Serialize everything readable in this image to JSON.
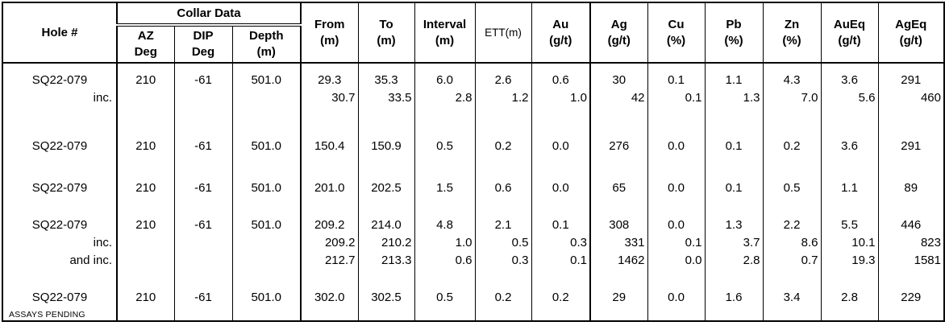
{
  "header": {
    "hole": "Hole #",
    "collar": "Collar Data",
    "az1": "AZ",
    "az2": "Deg",
    "dip1": "DIP",
    "dip2": "Deg",
    "depth1": "Depth",
    "depth2": "(m)",
    "from1": "From",
    "from2": "(m)",
    "to1": "To",
    "to2": "(m)",
    "interval1": "Interval",
    "interval2": "(m)",
    "ett": "ETT(m)",
    "au1": "Au",
    "au2": "(g/t)",
    "ag1": "Ag",
    "ag2": "(g/t)",
    "cu1": "Cu",
    "cu2": "(%)",
    "pb1": "Pb",
    "pb2": "(%)",
    "zn1": "Zn",
    "zn2": "(%)",
    "aueq1": "AuEq",
    "aueq2": "(g/t)",
    "ageq1": "AgEq",
    "ageq2": "(g/t)"
  },
  "columns_order": [
    "AZ Deg",
    "DIP Deg",
    "Depth (m)",
    "From (m)",
    "To (m)",
    "Interval (m)",
    "ETT(m)",
    "Au (g/t)",
    "Ag (g/t)",
    "Cu (%)",
    "Pb (%)",
    "Zn (%)",
    "AuEq (g/t)",
    "AgEq (g/t)"
  ],
  "blocks": [
    {
      "rows": [
        {
          "label": "SQ22-079",
          "values": [
            "210",
            "-61",
            "501.0",
            "29.3",
            "35.3",
            "6.0",
            "2.6",
            "0.6",
            "30",
            "0.1",
            "1.1",
            "4.3",
            "3.6",
            "291"
          ]
        },
        {
          "label": "inc.",
          "values": [
            "",
            "",
            "",
            "30.7",
            "33.5",
            "2.8",
            "1.2",
            "1.0",
            "42",
            "0.1",
            "1.3",
            "7.0",
            "5.6",
            "460"
          ]
        }
      ]
    },
    {
      "rows": [
        {
          "label": "SQ22-079",
          "values": [
            "210",
            "-61",
            "501.0",
            "150.4",
            "150.9",
            "0.5",
            "0.2",
            "0.0",
            "276",
            "0.0",
            "0.1",
            "0.2",
            "3.6",
            "291"
          ]
        }
      ]
    },
    {
      "rows": [
        {
          "label": "SQ22-079",
          "values": [
            "210",
            "-61",
            "501.0",
            "201.0",
            "202.5",
            "1.5",
            "0.6",
            "0.0",
            "65",
            "0.0",
            "0.1",
            "0.5",
            "1.1",
            "89"
          ]
        }
      ]
    },
    {
      "rows": [
        {
          "label": "SQ22-079",
          "values": [
            "210",
            "-61",
            "501.0",
            "209.2",
            "214.0",
            "4.8",
            "2.1",
            "0.1",
            "308",
            "0.0",
            "1.3",
            "2.2",
            "5.5",
            "446"
          ]
        },
        {
          "label": "inc.",
          "values": [
            "",
            "",
            "",
            "209.2",
            "210.2",
            "1.0",
            "0.5",
            "0.3",
            "331",
            "0.1",
            "3.7",
            "8.6",
            "10.1",
            "823"
          ]
        },
        {
          "label": "and inc.",
          "values": [
            "",
            "",
            "",
            "212.7",
            "213.3",
            "0.6",
            "0.3",
            "0.1",
            "1462",
            "0.0",
            "2.8",
            "0.7",
            "19.3",
            "1581"
          ]
        }
      ]
    },
    {
      "note": "ASSAYS PENDING",
      "rows": [
        {
          "label": "SQ22-079",
          "values": [
            "210",
            "-61",
            "501.0",
            "302.0",
            "302.5",
            "0.5",
            "0.2",
            "0.2",
            "29",
            "0.0",
            "1.6",
            "3.4",
            "2.8",
            "229"
          ]
        }
      ]
    }
  ]
}
